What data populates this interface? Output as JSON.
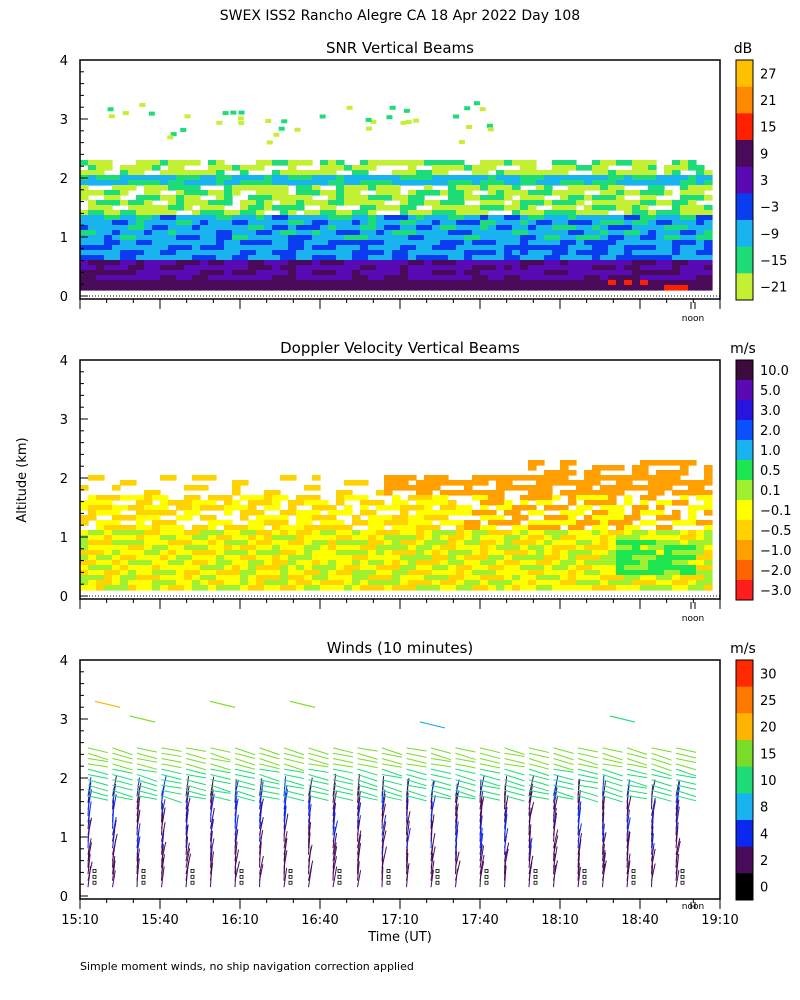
{
  "page_title": "SWEX ISS2 Rancho Alegre CA  18 Apr 2022 Day 108",
  "footnote": "Simple moment winds, no ship navigation correction applied",
  "noon_label": "noon",
  "chart_data": [
    {
      "type": "heatmap",
      "title": "SNR Vertical Beams",
      "xlabel": "",
      "ylabel": "",
      "xlim": [
        "15:10",
        "19:10"
      ],
      "ylim": [
        0,
        4
      ],
      "y_ticks": [
        "0",
        "1",
        "2",
        "3",
        "4"
      ],
      "colorbar_unit": "dB",
      "colorbar_labels": [
        "27",
        "21",
        "15",
        "9",
        "3",
        "−3",
        "−9",
        "−15",
        "−21"
      ],
      "colorbar_colors": [
        "#ffc000",
        "#ff8a00",
        "#ff2000",
        "#4a0a5a",
        "#5a0ab4",
        "#0a3cf0",
        "#19b4f0",
        "#1edc78",
        "#c3f032"
      ]
    },
    {
      "type": "heatmap",
      "title": "Doppler Velocity Vertical Beams",
      "xlabel": "",
      "ylabel": "Altitude (km)",
      "xlim": [
        "15:10",
        "19:10"
      ],
      "ylim": [
        0,
        4
      ],
      "y_ticks": [
        "0",
        "1",
        "2",
        "3",
        "4"
      ],
      "colorbar_unit": "m/s",
      "colorbar_labels": [
        "10.0",
        "5.0",
        "3.0",
        "2.0",
        "1.0",
        "0.5",
        "0.1",
        "−0.1",
        "−0.5",
        "−1.0",
        "−2.0",
        "−3.0"
      ],
      "colorbar_colors": [
        "#3c0a3c",
        "#5a0ab4",
        "#2814dc",
        "#0a50ff",
        "#19b4f0",
        "#1ee650",
        "#a0f032",
        "#ffff00",
        "#ffd200",
        "#ffa000",
        "#ff6400",
        "#ff1e1e"
      ]
    },
    {
      "type": "scatter",
      "title": "Winds (10 minutes)",
      "xlabel": "Time (UT)",
      "ylabel": "",
      "xlim": [
        "15:10",
        "19:10"
      ],
      "ylim": [
        0,
        4
      ],
      "y_ticks": [
        "0",
        "1",
        "2",
        "3",
        "4"
      ],
      "x_ticks": [
        "15:10",
        "15:40",
        "16:10",
        "16:40",
        "17:10",
        "17:40",
        "18:10",
        "18:40",
        "19:10"
      ],
      "colorbar_unit": "m/s",
      "colorbar_labels": [
        "30",
        "25",
        "20",
        "15",
        "10",
        "8",
        "4",
        "2",
        "0"
      ],
      "colorbar_colors": [
        "#ff2a00",
        "#ff7800",
        "#ffb400",
        "#78dc28",
        "#1edc78",
        "#19b4f0",
        "#0a28f0",
        "#4a0a5a",
        "#000000"
      ]
    }
  ]
}
